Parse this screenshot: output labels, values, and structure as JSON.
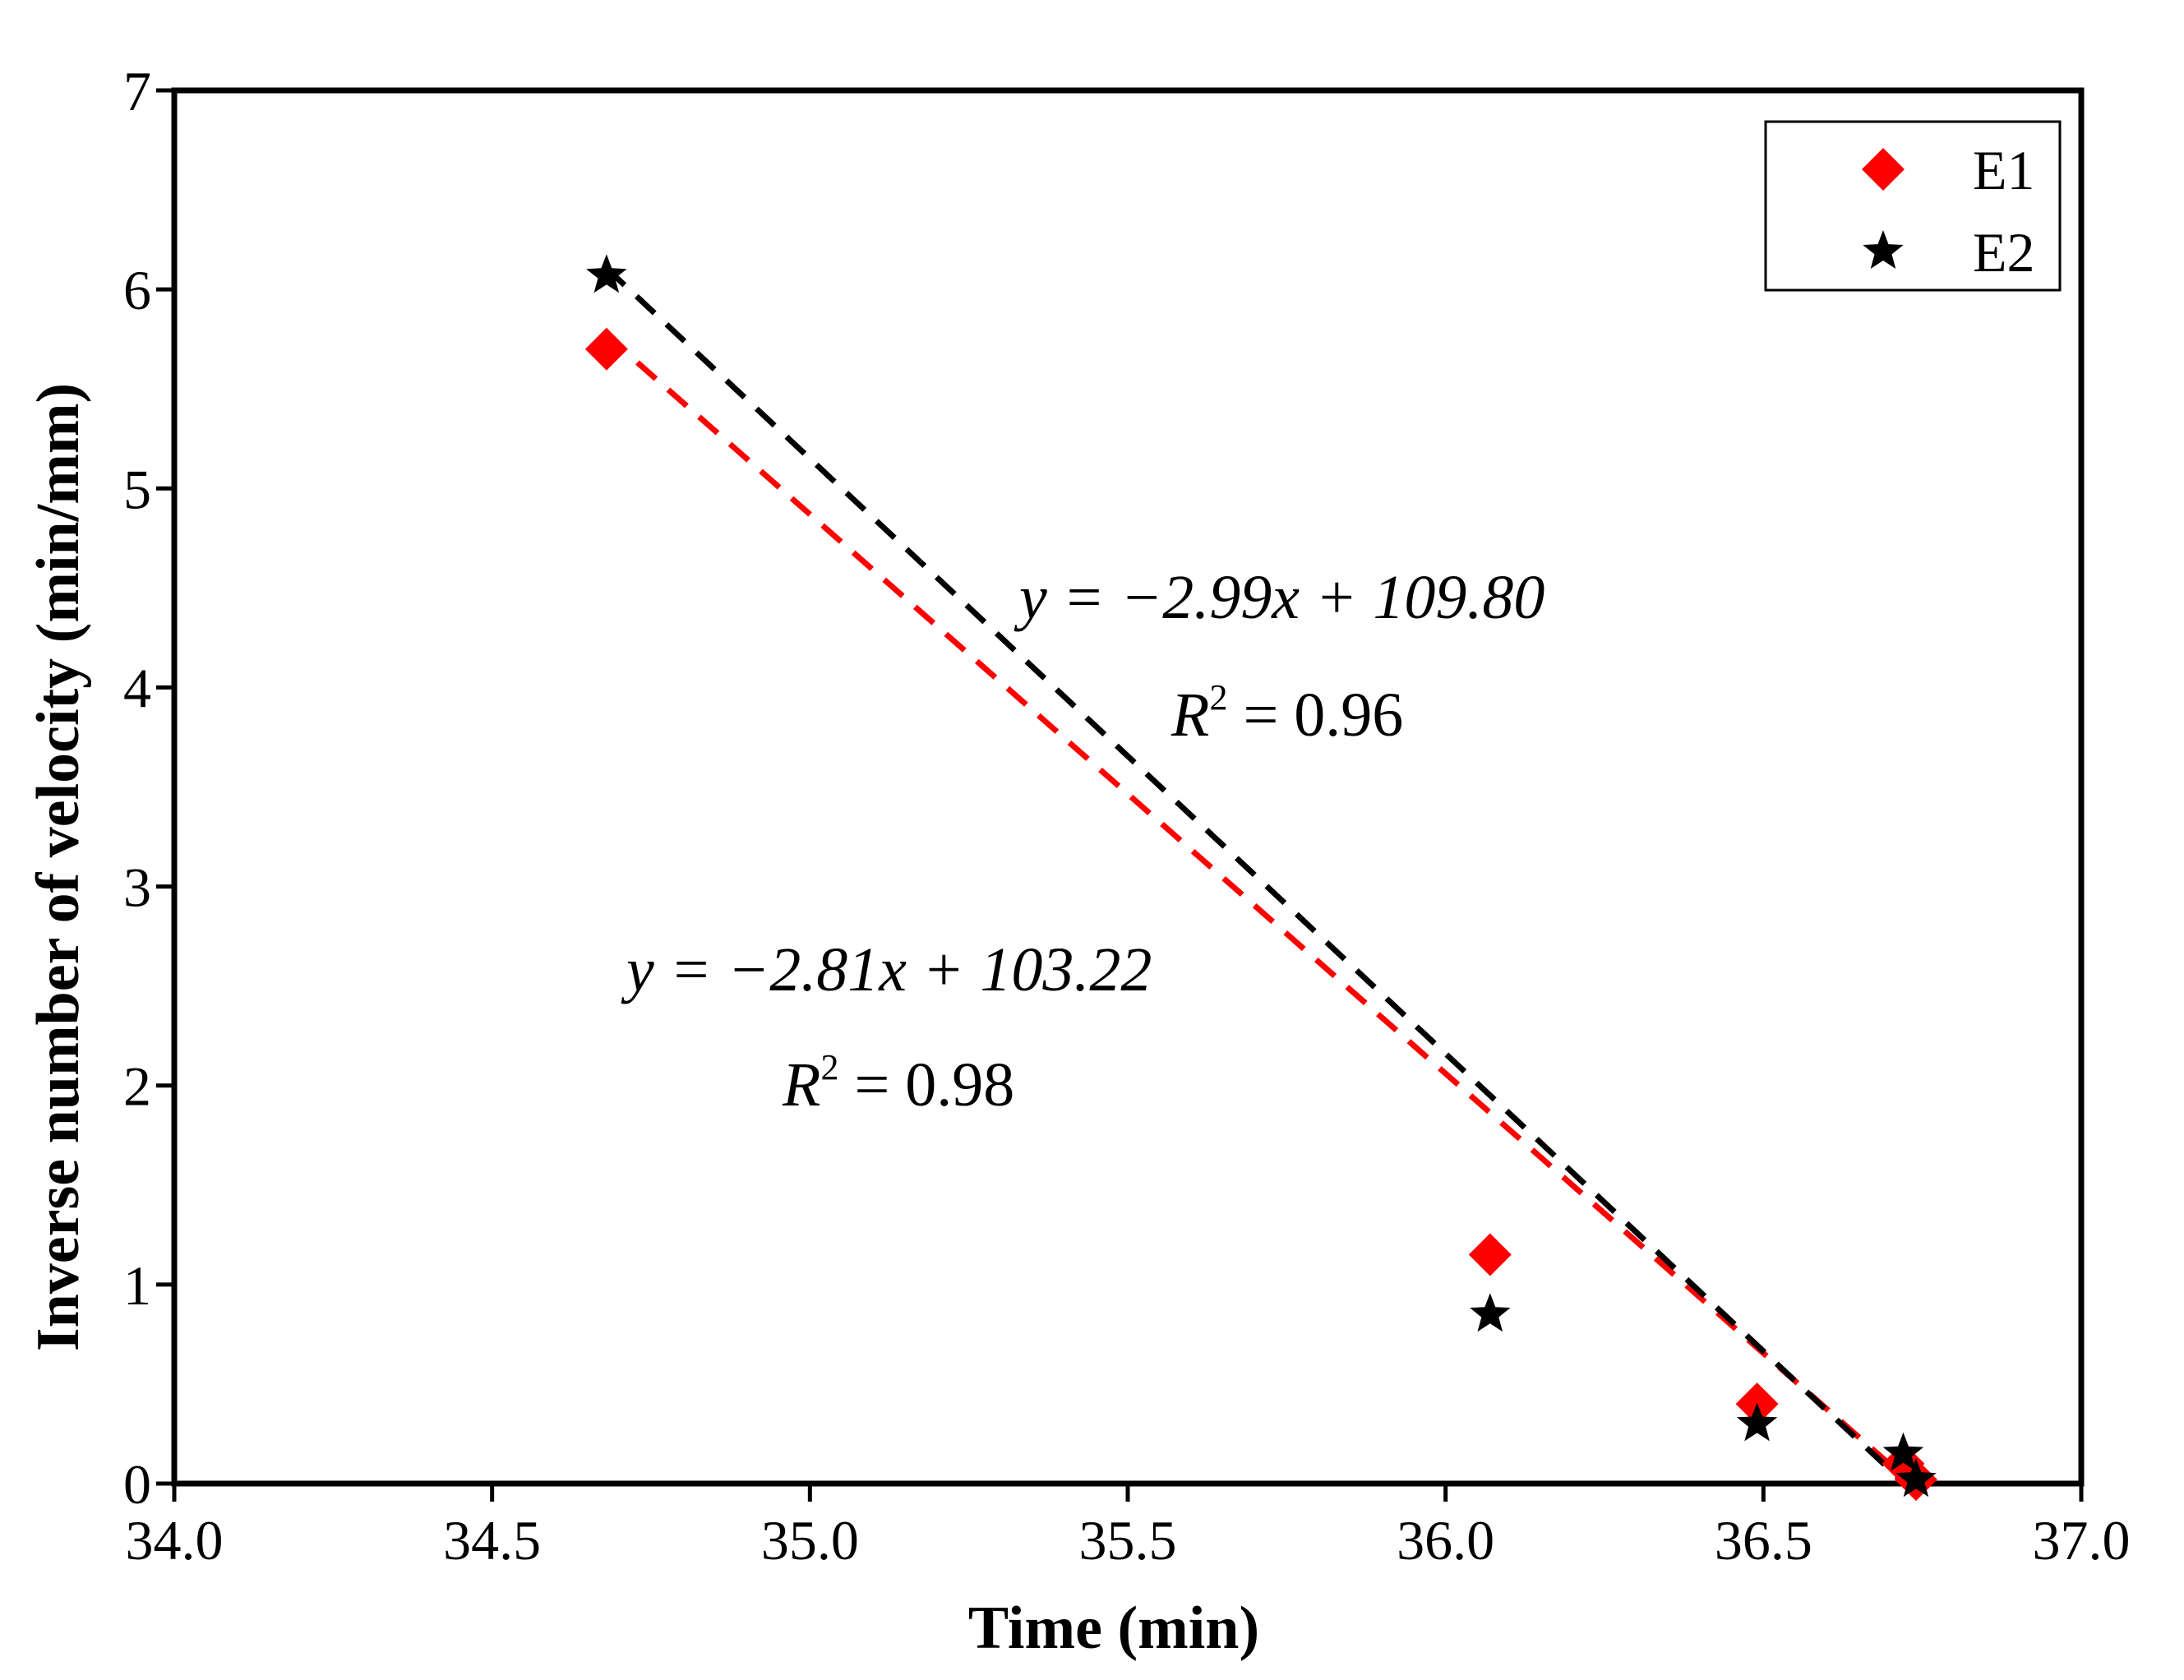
{
  "chart_data": {
    "type": "scatter",
    "xlabel": "Time (min)",
    "ylabel": "Inverse number of velocity (min/mm)",
    "xlim": [
      34.0,
      37.0
    ],
    "ylim": [
      0,
      7
    ],
    "x_ticks": [
      "34.0",
      "34.5",
      "35.0",
      "35.5",
      "36.0",
      "36.5",
      "37.0"
    ],
    "y_ticks": [
      "0",
      "1",
      "2",
      "3",
      "4",
      "5",
      "6",
      "7"
    ],
    "grid": false,
    "legend_position": "top-right",
    "series": [
      {
        "name": "E1",
        "marker": "diamond",
        "color": "#ff0000",
        "points": [
          [
            34.68,
            5.7
          ],
          [
            36.07,
            1.15
          ],
          [
            36.49,
            0.4
          ],
          [
            36.72,
            0.1
          ],
          [
            36.74,
            0.02
          ]
        ],
        "fit": {
          "slope": -2.81,
          "intercept": 103.22,
          "x_range": [
            34.68,
            36.74
          ]
        }
      },
      {
        "name": "E2",
        "marker": "star",
        "color": "#000000",
        "points": [
          [
            34.68,
            6.07
          ],
          [
            36.07,
            0.85
          ],
          [
            36.49,
            0.3
          ],
          [
            36.72,
            0.15
          ],
          [
            36.74,
            0.02
          ]
        ],
        "fit": {
          "slope": -2.99,
          "intercept": 109.8,
          "x_range": [
            34.68,
            36.72
          ]
        }
      }
    ],
    "annotations": [
      {
        "series": "E2",
        "equation": "y = −2.99x + 109.80",
        "r2_label": "R",
        "r2_sup": "2",
        "r2_value": " = 0.96"
      },
      {
        "series": "E1",
        "equation": "y = −2.81x + 103.22",
        "r2_label": "R",
        "r2_sup": "2",
        "r2_value": " = 0.98"
      }
    ]
  }
}
